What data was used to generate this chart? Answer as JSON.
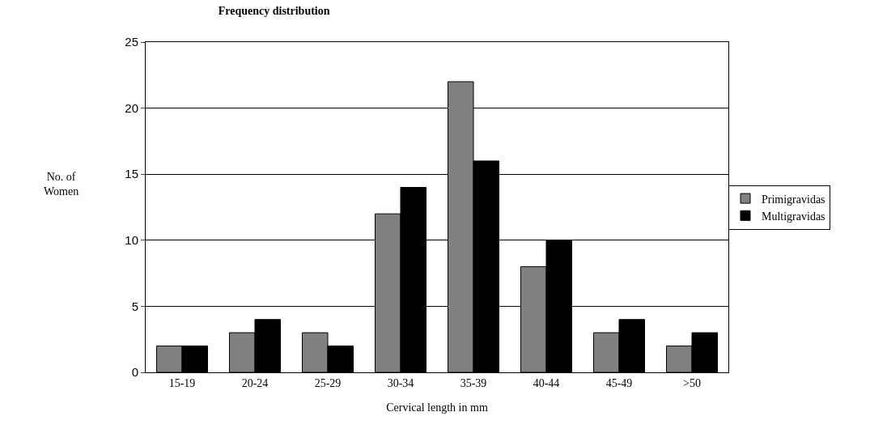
{
  "chart_data": {
    "type": "bar",
    "title": "Frequency distribution",
    "xlabel": "Cervical length in mm",
    "ylabel": "No. of\nWomen",
    "categories": [
      "15-19",
      "20-24",
      "25-29",
      "30-34",
      "35-39",
      "40-44",
      "45-49",
      ">50"
    ],
    "series": [
      {
        "name": "Primigravidas",
        "color": "#808080",
        "values": [
          2,
          3,
          3,
          12,
          22,
          8,
          3,
          2
        ]
      },
      {
        "name": "Multigravidas",
        "color": "#000000",
        "values": [
          2,
          4,
          2,
          14,
          16,
          10,
          4,
          3
        ]
      }
    ],
    "ylim": [
      0,
      25
    ],
    "yticks": [
      0,
      5,
      10,
      15,
      20,
      25
    ],
    "grid": "y",
    "legend": "right"
  }
}
